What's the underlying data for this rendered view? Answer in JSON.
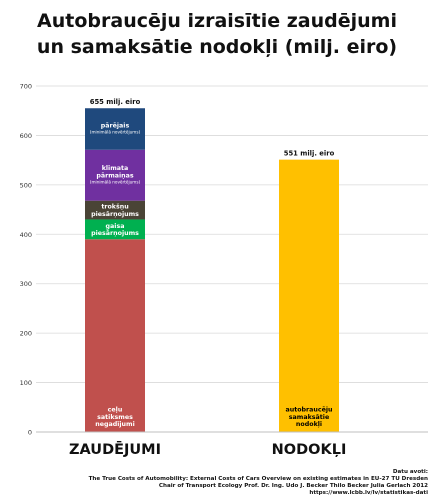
{
  "title_lines": [
    "Autobraucēju izraisītie zaudējumi",
    "un samaksātie nodokļi (milj. eiro)"
  ],
  "chart_data": {
    "type": "bar",
    "stacked": true,
    "ylim": [
      0,
      700
    ],
    "yticks": [
      0,
      100,
      200,
      300,
      400,
      500,
      600,
      700
    ],
    "grid": true,
    "categories": [
      "ZAUDĒJUMI",
      "NODOKĻI"
    ],
    "bars": [
      {
        "category": "ZAUDĒJUMI",
        "total_label": "655 milj. eiro",
        "segments": [
          {
            "label": "ceļu satiksmes negadījumi",
            "value": 390,
            "color": "#c0504d",
            "text_color": "#ffffff"
          },
          {
            "label": "gaisa piesārņojums",
            "value": 40,
            "color": "#00b050",
            "text_color": "#ffffff"
          },
          {
            "label": "trokšņu piesārņojums",
            "value": 38,
            "color": "#4a4436",
            "text_color": "#ffffff"
          },
          {
            "label": "klimata pārmaiņas",
            "sublabel": "(minimālā novērtējums)",
            "value": 103,
            "color": "#7030a0",
            "text_color": "#ffffff"
          },
          {
            "label": "pārējais",
            "sublabel": "(minimālā novērtējums)",
            "value": 84,
            "color": "#1f497d",
            "text_color": "#ffffff"
          }
        ]
      },
      {
        "category": "NODOKĻI",
        "total_label": "551 milj. eiro",
        "segments": [
          {
            "label": "autobraucēju samaksātie nodokļi",
            "value": 551,
            "color": "#ffc000",
            "text_color": "#000000"
          }
        ]
      }
    ]
  },
  "source": {
    "lines": [
      "Datu avoti:",
      "The True Costs of Automobility: External Costs of Cars Overview on existing estimates in EU-27 TU Dresden",
      "Chair of Transport Ecology Prof. Dr. Ing. Udo J. Becker Thilo Becker Julia Gerlach 2012",
      "https://www.lcbb.lv/lv/statistikas-dati"
    ]
  }
}
